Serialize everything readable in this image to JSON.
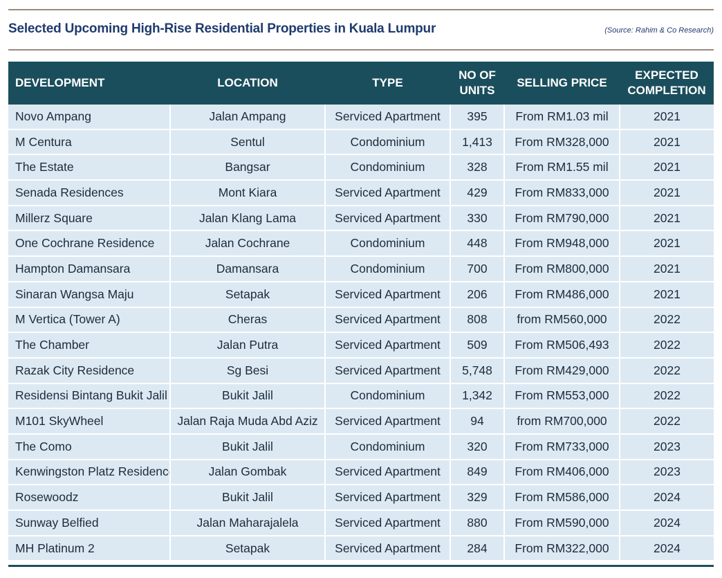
{
  "header": {
    "title": "Selected Upcoming High-Rise Residential Properties in Kuala Lumpur",
    "source": "(Source: Rahim & Co Research)"
  },
  "table": {
    "columns": [
      "DEVELOPMENT",
      "LOCATION",
      "TYPE",
      "NO OF UNITS",
      "SELLING PRICE",
      "EXPECTED COMPLETION"
    ],
    "rows": [
      [
        "Novo Ampang",
        "Jalan Ampang",
        "Serviced Apartment",
        "395",
        "From RM1.03 mil",
        "2021"
      ],
      [
        "M Centura",
        "Sentul",
        "Condominium",
        "1,413",
        "From RM328,000",
        "2021"
      ],
      [
        "The Estate",
        "Bangsar",
        "Condominium",
        "328",
        "From RM1.55 mil",
        "2021"
      ],
      [
        "Senada Residences",
        "Mont Kiara",
        "Serviced Apartment",
        "429",
        "From RM833,000",
        "2021"
      ],
      [
        "Millerz Square",
        "Jalan Klang Lama",
        "Serviced Apartment",
        "330",
        "From RM790,000",
        "2021"
      ],
      [
        "One Cochrane Residence",
        "Jalan Cochrane",
        "Condominium",
        "448",
        "From RM948,000",
        "2021"
      ],
      [
        "Hampton Damansara",
        "Damansara",
        "Condominium",
        "700",
        "From RM800,000",
        "2021"
      ],
      [
        "Sinaran Wangsa Maju",
        "Setapak",
        "Serviced Apartment",
        "206",
        "From RM486,000",
        "2021"
      ],
      [
        "M Vertica (Tower A)",
        "Cheras",
        "Serviced Apartment",
        "808",
        "from RM560,000",
        "2022"
      ],
      [
        "The Chamber",
        "Jalan Putra",
        "Serviced Apartment",
        "509",
        "From RM506,493",
        "2022"
      ],
      [
        "Razak City Residence",
        "Sg Besi",
        "Serviced Apartment",
        "5,748",
        "From RM429,000",
        "2022"
      ],
      [
        "Residensi Bintang Bukit Jalil",
        "Bukit Jalil",
        "Condominium",
        "1,342",
        "From RM553,000",
        "2022"
      ],
      [
        "M101 SkyWheel",
        "Jalan Raja Muda Abd Aziz",
        "Serviced Apartment",
        "94",
        "from RM700,000",
        "2022"
      ],
      [
        "The Como",
        "Bukit Jalil",
        "Condominium",
        "320",
        "From RM733,000",
        "2023"
      ],
      [
        "Kenwingston Platz Residence",
        "Jalan Gombak",
        "Serviced Apartment",
        "849",
        "From RM406,000",
        "2023"
      ],
      [
        "Rosewoodz",
        "Bukit Jalil",
        "Serviced Apartment",
        "329",
        "From RM586,000",
        "2024"
      ],
      [
        "Sunway Belfied",
        "Jalan Maharajalela",
        "Serviced Apartment",
        "880",
        "From RM590,000",
        "2024"
      ],
      [
        "MH Platinum 2",
        "Setapak",
        "Serviced Apartment",
        "284",
        "From RM322,000",
        "2024"
      ]
    ]
  }
}
